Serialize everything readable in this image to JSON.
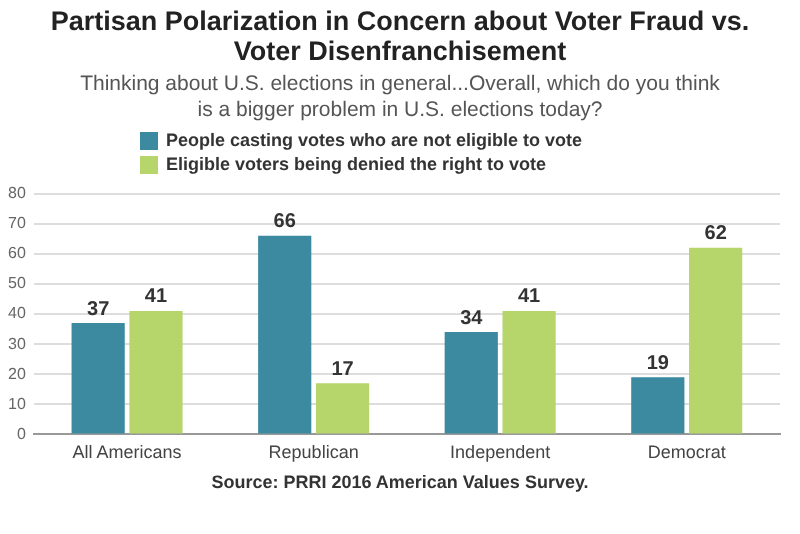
{
  "chart_data": {
    "type": "bar",
    "title": "Partisan Polarization in Concern about Voter Fraud vs. Voter Disenfranchisement",
    "subtitle": "Thinking about U.S. elections in general...Overall, which do you think is a bigger problem in U.S. elections today?",
    "categories": [
      "All Americans",
      "Republican",
      "Independent",
      "Democrat"
    ],
    "series": [
      {
        "name": "People casting votes who are not eligible to vote",
        "color": "#3b8a9f",
        "values": [
          37,
          66,
          34,
          19
        ]
      },
      {
        "name": "Eligible voters being denied the right to vote",
        "color": "#b6d56b",
        "values": [
          41,
          17,
          41,
          62
        ]
      }
    ],
    "ylim": [
      0,
      80
    ],
    "yticks": [
      0,
      10,
      20,
      30,
      40,
      50,
      60,
      70,
      80
    ],
    "grid": "y",
    "legend": "top left",
    "data_labels": true,
    "annotations": [
      "Source: PRRI 2016 American Values Survey."
    ]
  }
}
